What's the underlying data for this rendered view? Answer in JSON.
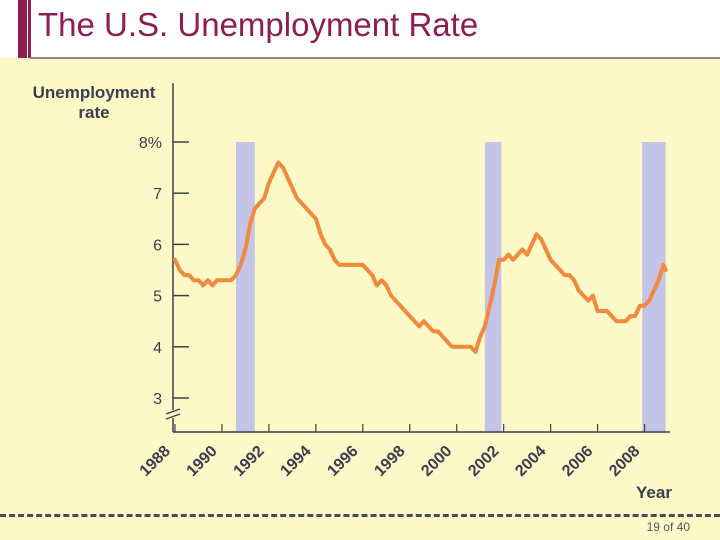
{
  "slide": {
    "title": "The U.S. Unemployment Rate",
    "page_number": "19 of 40"
  },
  "colors": {
    "background": "#fcf8c8",
    "title": "#8e1e4e",
    "line": "#f08a3c",
    "recession": "#c4c4e6",
    "axis": "#3d3d4f"
  },
  "chart_data": {
    "type": "line",
    "ylabel_line1": "Unemployment",
    "ylabel_line2": "rate",
    "xlabel": "Year",
    "ylim": [
      3,
      8
    ],
    "xlim": [
      1988,
      2009
    ],
    "y_ticks": [
      {
        "value": 8,
        "label": "8%"
      },
      {
        "value": 7,
        "label": "7"
      },
      {
        "value": 6,
        "label": "6"
      },
      {
        "value": 5,
        "label": "5"
      },
      {
        "value": 4,
        "label": "4"
      },
      {
        "value": 3,
        "label": "3"
      }
    ],
    "x_ticks": [
      "1988",
      "1990",
      "1992",
      "1994",
      "1996",
      "1998",
      "2000",
      "2002",
      "2004",
      "2006",
      "2008"
    ],
    "recessions": [
      {
        "start": 1990.6,
        "end": 1991.4
      },
      {
        "start": 2001.2,
        "end": 2001.9
      },
      {
        "start": 2007.9,
        "end": 2008.9
      }
    ],
    "series": [
      {
        "x": [
          1988.0,
          1988.2,
          1988.4,
          1988.6,
          1988.8,
          1989.0,
          1989.2,
          1989.4,
          1989.6,
          1989.8,
          1990.0,
          1990.2,
          1990.4,
          1990.6,
          1990.8,
          1991.0,
          1991.2,
          1991.4,
          1991.6,
          1991.8,
          1992.0,
          1992.2,
          1992.4,
          1992.6,
          1992.8,
          1993.0,
          1993.2,
          1993.4,
          1993.6,
          1993.8,
          1994.0,
          1994.2,
          1994.4,
          1994.6,
          1994.8,
          1995.0,
          1995.2,
          1995.4,
          1995.6,
          1995.8,
          1996.0,
          1996.2,
          1996.4,
          1996.6,
          1996.8,
          1997.0,
          1997.2,
          1997.4,
          1997.6,
          1997.8,
          1998.0,
          1998.2,
          1998.4,
          1998.6,
          1998.8,
          1999.0,
          1999.2,
          1999.4,
          1999.6,
          1999.8,
          2000.0,
          2000.2,
          2000.4,
          2000.6,
          2000.8,
          2001.0,
          2001.2,
          2001.4,
          2001.6,
          2001.8,
          2002.0,
          2002.2,
          2002.4,
          2002.6,
          2002.8,
          2003.0,
          2003.2,
          2003.4,
          2003.6,
          2003.8,
          2004.0,
          2004.2,
          2004.4,
          2004.6,
          2004.8,
          2005.0,
          2005.2,
          2005.4,
          2005.6,
          2005.8,
          2006.0,
          2006.2,
          2006.4,
          2006.6,
          2006.8,
          2007.0,
          2007.2,
          2007.4,
          2007.6,
          2007.8,
          2008.0,
          2008.2,
          2008.4,
          2008.6,
          2008.8,
          2008.9
        ],
        "values": [
          5.7,
          5.5,
          5.4,
          5.4,
          5.3,
          5.3,
          5.2,
          5.3,
          5.2,
          5.3,
          5.3,
          5.3,
          5.3,
          5.4,
          5.6,
          5.9,
          6.4,
          6.7,
          6.8,
          6.9,
          7.2,
          7.4,
          7.6,
          7.5,
          7.3,
          7.1,
          6.9,
          6.8,
          6.7,
          6.6,
          6.5,
          6.2,
          6.0,
          5.9,
          5.7,
          5.6,
          5.6,
          5.6,
          5.6,
          5.6,
          5.6,
          5.5,
          5.4,
          5.2,
          5.3,
          5.2,
          5.0,
          4.9,
          4.8,
          4.7,
          4.6,
          4.5,
          4.4,
          4.5,
          4.4,
          4.3,
          4.3,
          4.2,
          4.1,
          4.0,
          4.0,
          4.0,
          4.0,
          4.0,
          3.9,
          4.2,
          4.4,
          4.8,
          5.2,
          5.7,
          5.7,
          5.8,
          5.7,
          5.8,
          5.9,
          5.8,
          6.0,
          6.2,
          6.1,
          5.9,
          5.7,
          5.6,
          5.5,
          5.4,
          5.4,
          5.3,
          5.1,
          5.0,
          4.9,
          5.0,
          4.7,
          4.7,
          4.7,
          4.6,
          4.5,
          4.5,
          4.5,
          4.6,
          4.6,
          4.8,
          4.8,
          4.9,
          5.1,
          5.3,
          5.6,
          5.5
        ]
      }
    ]
  }
}
